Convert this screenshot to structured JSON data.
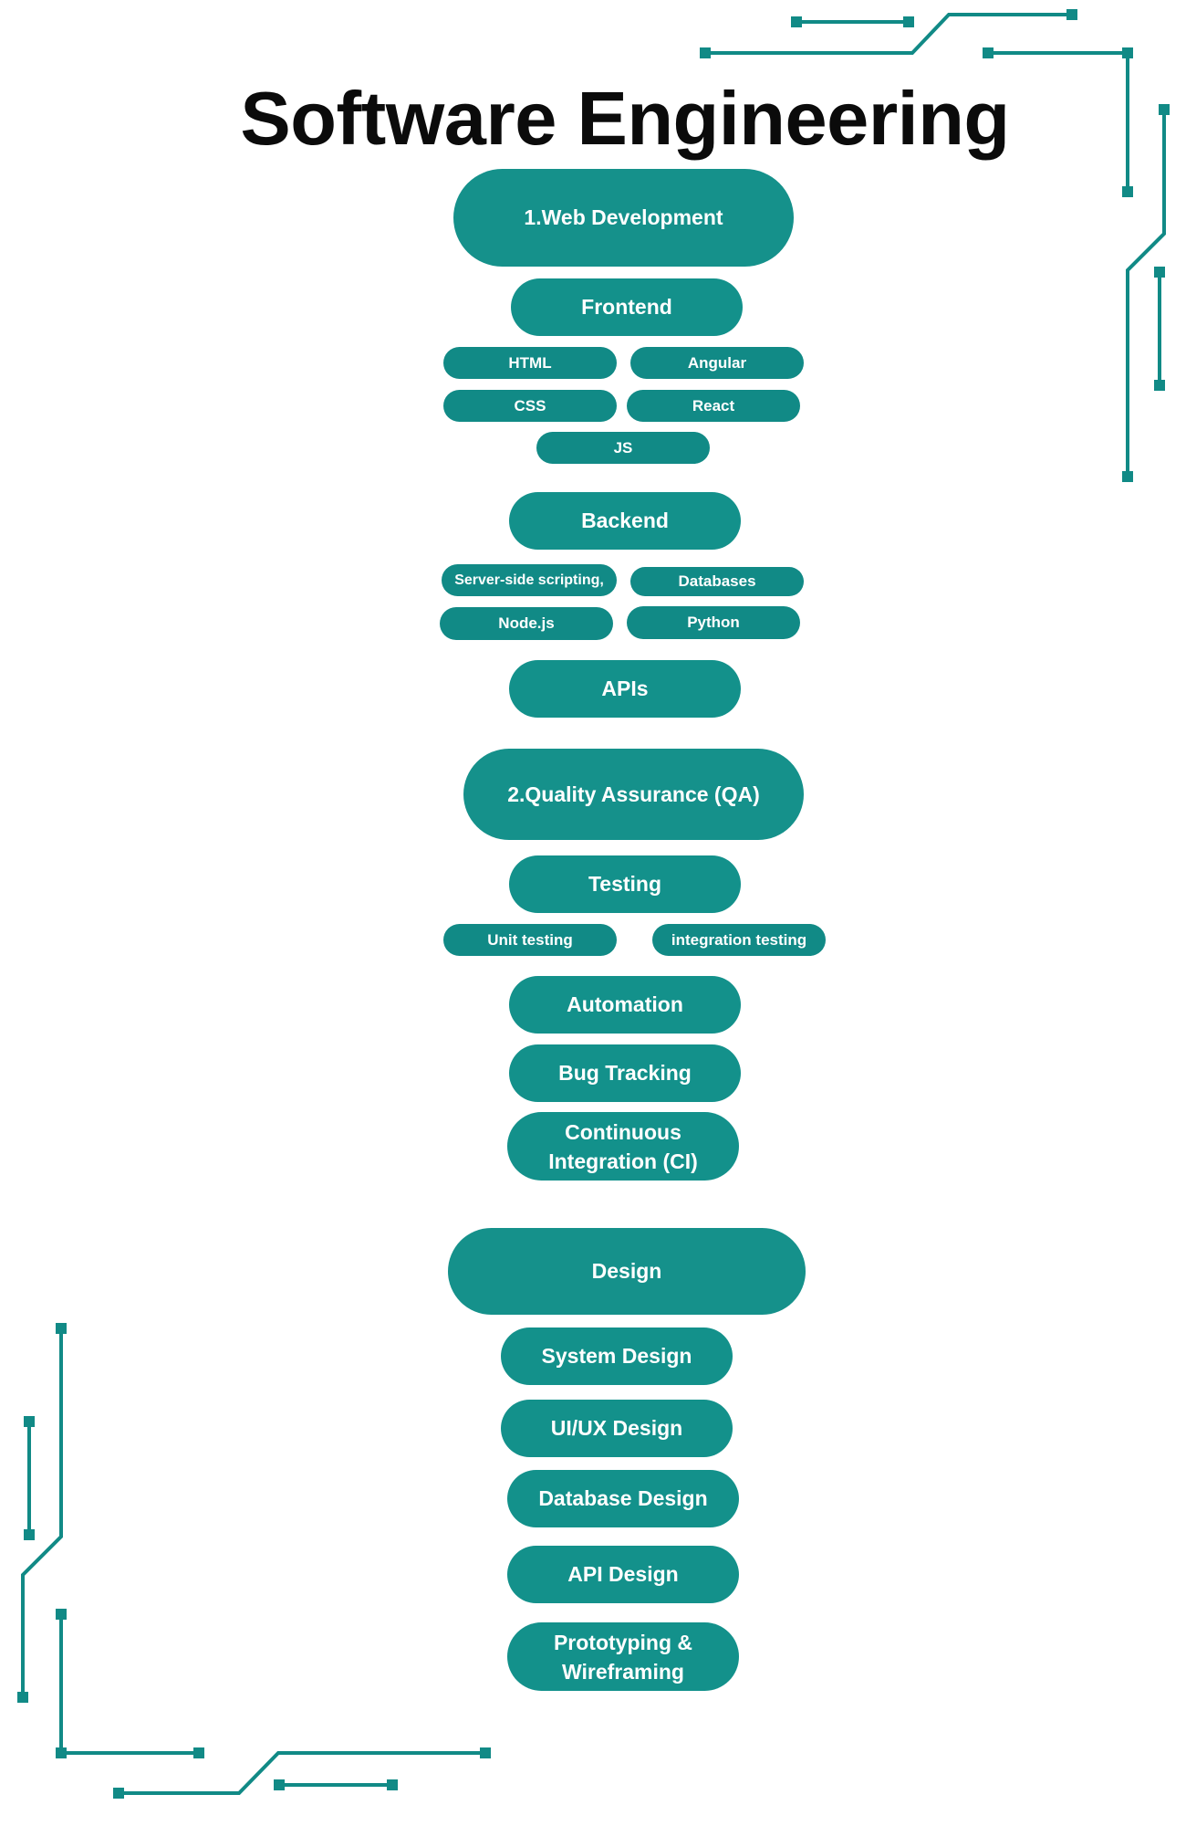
{
  "title": "Software Engineering",
  "colors": {
    "node": "#15918b",
    "circuit": "#118a86",
    "text": "#ffffff",
    "title": "#0b0b0b"
  },
  "sections": {
    "web": {
      "label": "1.Web Development",
      "frontend": {
        "label": "Frontend",
        "items": [
          "HTML",
          "Angular",
          "CSS",
          "React",
          "JS"
        ]
      },
      "backend": {
        "label": "Backend",
        "items": [
          "Server-side scripting,",
          "Databases",
          "Node.js",
          "Python"
        ]
      },
      "apis": {
        "label": "APIs"
      }
    },
    "qa": {
      "label": "2.Quality Assurance (QA)",
      "testing": {
        "label": "Testing",
        "items": [
          "Unit testing",
          "integration testing"
        ]
      },
      "automation": {
        "label": "Automation"
      },
      "bug_tracking": {
        "label": "Bug Tracking"
      },
      "ci": {
        "label": "Continuous Integration (CI)"
      }
    },
    "design": {
      "label": "Design",
      "items": [
        "System Design",
        "UI/UX Design",
        "Database Design",
        "API Design",
        "Prototyping & Wireframing"
      ]
    }
  }
}
